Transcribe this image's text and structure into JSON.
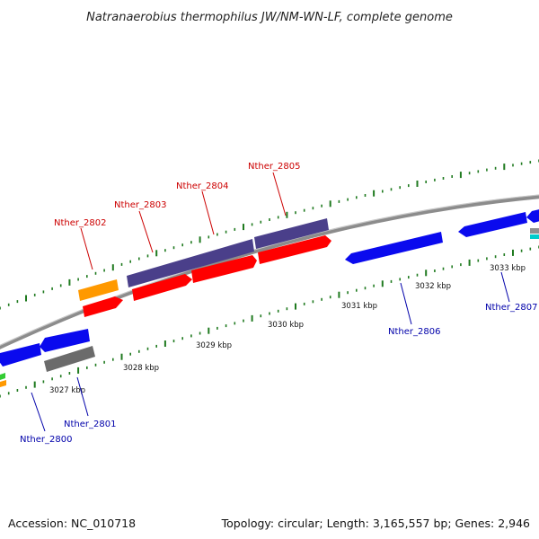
{
  "title": "Natranaerobius thermophilus JW/NM-WN-LF, complete genome",
  "footer": {
    "accession": "Accession: NC_010718",
    "summary": "Topology: circular; Length: 3,165,557 bp; Genes: 2,946"
  },
  "kbp_labels": [
    "3027 kbp",
    "3028 kbp",
    "3029 kbp",
    "3030 kbp",
    "3031 kbp",
    "3032 kbp",
    "3033 kbp"
  ],
  "gene_labels": {
    "forward": [
      "Nther_2802",
      "Nther_2803",
      "Nther_2804",
      "Nther_2805"
    ],
    "reverse": [
      "Nther_2800",
      "Nther_2801",
      "Nther_2806",
      "Nther_2807"
    ]
  },
  "colors": {
    "forward_label": "#cc0000",
    "reverse_label": "#0000aa",
    "backbone": "#8c8c8c",
    "tick": "#1f7a1f",
    "red_feature": "#ff0000",
    "blue_feature": "#0a0aee",
    "purple_feature": "#4a3f8a",
    "orange_feature": "#ff9900",
    "gray_feature": "#6b6b6b",
    "cyan_feature": "#00cccc",
    "green_feature": "#33cc33"
  }
}
